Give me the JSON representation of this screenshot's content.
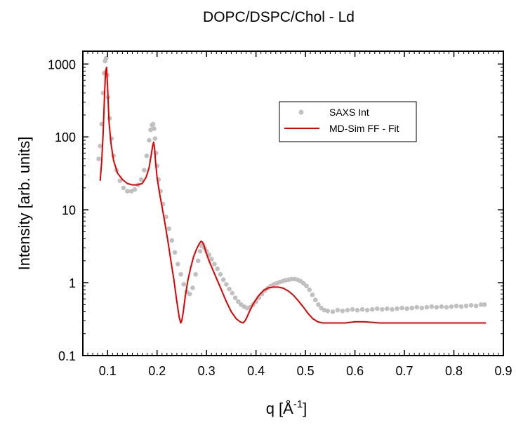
{
  "chart_data": {
    "type": "scatter",
    "title": "DOPC/DSPC/Chol - Ld",
    "xlabel": "q [Å",
    "xlabel_sup": "-1",
    "xlabel_end": "]",
    "ylabel": "Intensity [arb. units]",
    "xlim": [
      0.05,
      0.9
    ],
    "ylim": [
      0.1,
      1500
    ],
    "yscale": "log",
    "x_ticks": [
      0.1,
      0.2,
      0.3,
      0.4,
      0.5,
      0.6,
      0.7,
      0.8,
      0.9
    ],
    "x_tick_labels": [
      "0.1",
      "0.2",
      "0.3",
      "0.4",
      "0.5",
      "0.6",
      "0.7",
      "0.8",
      "0.9"
    ],
    "y_ticks": [
      0.1,
      1,
      10,
      100,
      1000
    ],
    "y_tick_labels": [
      "0.1",
      "1",
      "10",
      "100",
      "1000"
    ],
    "grid": false,
    "legend_position": "top-right",
    "series": [
      {
        "name": "SAXS Int",
        "kind": "scatter",
        "color": "#c0c0c0",
        "x": [
          0.082,
          0.085,
          0.088,
          0.091,
          0.093,
          0.095,
          0.097,
          0.099,
          0.101,
          0.104,
          0.108,
          0.112,
          0.118,
          0.125,
          0.132,
          0.14,
          0.148,
          0.155,
          0.162,
          0.168,
          0.174,
          0.179,
          0.184,
          0.187,
          0.19,
          0.192,
          0.194,
          0.196,
          0.198,
          0.2,
          0.203,
          0.207,
          0.212,
          0.218,
          0.224,
          0.23,
          0.236,
          0.242,
          0.248,
          0.254,
          0.26,
          0.266,
          0.272,
          0.278,
          0.283,
          0.287,
          0.29,
          0.293,
          0.296,
          0.3,
          0.305,
          0.31,
          0.316,
          0.322,
          0.328,
          0.334,
          0.34,
          0.346,
          0.352,
          0.358,
          0.364,
          0.37,
          0.376,
          0.382,
          0.388,
          0.394,
          0.4,
          0.406,
          0.412,
          0.418,
          0.424,
          0.43,
          0.436,
          0.442,
          0.448,
          0.454,
          0.46,
          0.466,
          0.472,
          0.478,
          0.484,
          0.49,
          0.496,
          0.502,
          0.508,
          0.514,
          0.52,
          0.526,
          0.532,
          0.538,
          0.545,
          0.555,
          0.565,
          0.575,
          0.585,
          0.595,
          0.605,
          0.615,
          0.625,
          0.635,
          0.645,
          0.655,
          0.665,
          0.675,
          0.685,
          0.695,
          0.705,
          0.715,
          0.725,
          0.735,
          0.745,
          0.755,
          0.765,
          0.775,
          0.785,
          0.795,
          0.805,
          0.815,
          0.825,
          0.835,
          0.845,
          0.855,
          0.862
        ],
        "y": [
          50,
          75,
          150,
          400,
          750,
          1100,
          1200,
          700,
          350,
          180,
          95,
          55,
          35,
          25,
          20,
          18,
          18,
          19,
          22,
          26,
          35,
          55,
          90,
          125,
          145,
          150,
          130,
          95,
          60,
          40,
          26,
          18,
          12,
          8,
          5.5,
          3.8,
          2.6,
          1.8,
          1.3,
          0.95,
          0.75,
          0.7,
          0.85,
          1.3,
          2,
          2.7,
          3.2,
          3.3,
          3,
          2.7,
          2.4,
          2.1,
          1.8,
          1.55,
          1.3,
          1.1,
          0.95,
          0.82,
          0.72,
          0.62,
          0.55,
          0.5,
          0.47,
          0.45,
          0.46,
          0.5,
          0.55,
          0.62,
          0.7,
          0.78,
          0.84,
          0.9,
          0.95,
          0.98,
          1.02,
          1.05,
          1.08,
          1.1,
          1.12,
          1.12,
          1.1,
          1.05,
          0.98,
          0.9,
          0.8,
          0.68,
          0.58,
          0.5,
          0.45,
          0.42,
          0.41,
          0.4,
          0.42,
          0.41,
          0.42,
          0.43,
          0.42,
          0.43,
          0.42,
          0.43,
          0.44,
          0.43,
          0.44,
          0.43,
          0.44,
          0.45,
          0.44,
          0.45,
          0.46,
          0.45,
          0.46,
          0.47,
          0.46,
          0.47,
          0.46,
          0.47,
          0.48,
          0.47,
          0.48,
          0.49,
          0.48,
          0.5,
          0.5
        ]
      },
      {
        "name": "MD-Sim FF - Fit",
        "kind": "line",
        "color": "#e00000",
        "x": [
          0.085,
          0.088,
          0.091,
          0.094,
          0.096,
          0.098,
          0.1,
          0.103,
          0.107,
          0.112,
          0.12,
          0.13,
          0.14,
          0.15,
          0.16,
          0.17,
          0.178,
          0.184,
          0.188,
          0.191,
          0.193,
          0.195,
          0.197,
          0.2,
          0.205,
          0.21,
          0.216,
          0.222,
          0.228,
          0.234,
          0.24,
          0.245,
          0.248,
          0.25,
          0.253,
          0.257,
          0.262,
          0.268,
          0.274,
          0.28,
          0.285,
          0.289,
          0.292,
          0.295,
          0.299,
          0.305,
          0.312,
          0.32,
          0.33,
          0.34,
          0.35,
          0.36,
          0.368,
          0.374,
          0.378,
          0.382,
          0.388,
          0.395,
          0.405,
          0.415,
          0.425,
          0.435,
          0.445,
          0.455,
          0.465,
          0.475,
          0.485,
          0.495,
          0.505,
          0.515,
          0.525,
          0.535,
          0.545,
          0.555,
          0.565,
          0.58,
          0.6,
          0.62,
          0.65,
          0.7,
          0.75,
          0.8,
          0.85,
          0.865
        ],
        "y": [
          25,
          45,
          110,
          400,
          800,
          900,
          500,
          160,
          80,
          48,
          32,
          26,
          23,
          22,
          22,
          23,
          28,
          38,
          55,
          75,
          85,
          70,
          45,
          28,
          17,
          11,
          6.5,
          3.7,
          2,
          1.1,
          0.55,
          0.33,
          0.28,
          0.3,
          0.4,
          0.65,
          1.05,
          1.6,
          2.3,
          2.9,
          3.4,
          3.7,
          3.6,
          3.2,
          2.6,
          2,
          1.55,
          1.15,
          0.8,
          0.55,
          0.4,
          0.32,
          0.29,
          0.28,
          0.3,
          0.34,
          0.42,
          0.52,
          0.66,
          0.78,
          0.85,
          0.87,
          0.87,
          0.84,
          0.77,
          0.68,
          0.57,
          0.47,
          0.38,
          0.32,
          0.29,
          0.28,
          0.28,
          0.28,
          0.28,
          0.28,
          0.29,
          0.29,
          0.28,
          0.28,
          0.28,
          0.28,
          0.28,
          0.28
        ]
      }
    ]
  }
}
